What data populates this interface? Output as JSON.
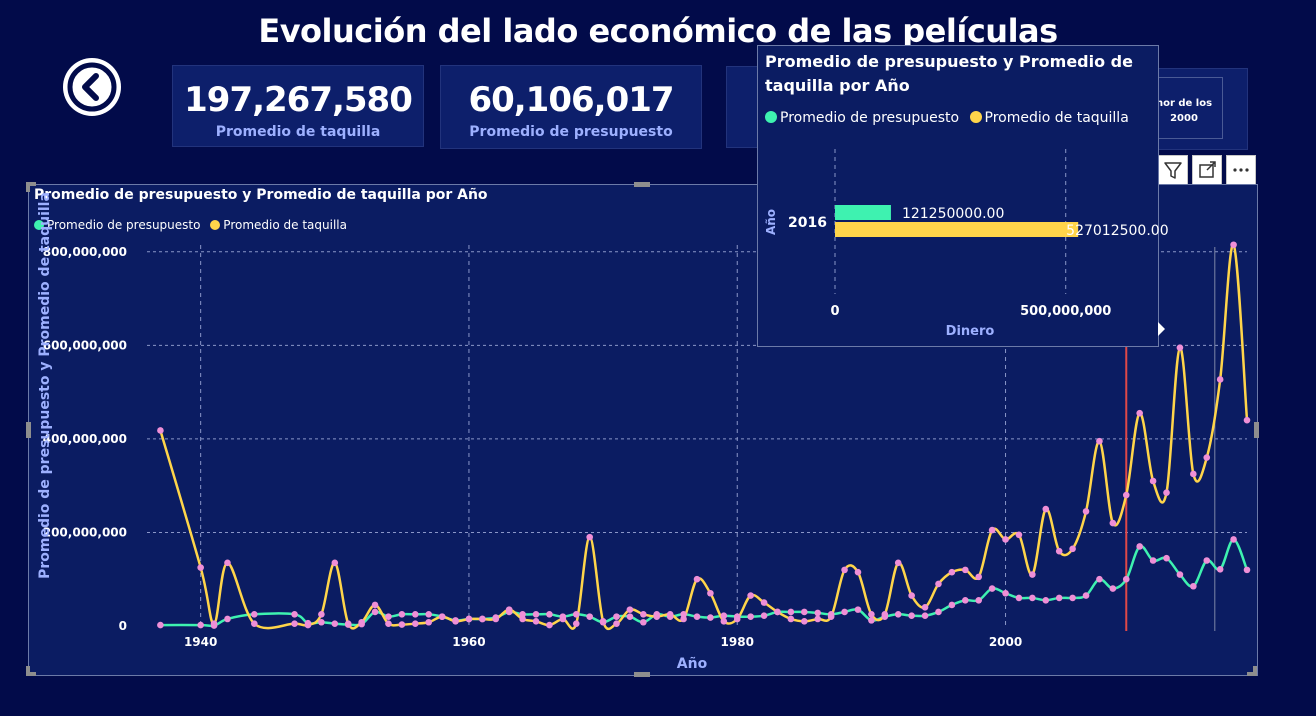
{
  "page": {
    "title": "Evolución del lado económico de las películas"
  },
  "icons": {
    "back": "chevron-left-circle-icon",
    "filter": "filter-icon",
    "focus": "focus-mode-icon",
    "more": "more-options-icon",
    "arrow": "chevron-right-icon"
  },
  "kpis": [
    {
      "value": "197,267,580",
      "label": "Promedio de taquilla"
    },
    {
      "value": "60,106,017",
      "label": "Promedio de presupuesto"
    },
    {
      "value": "",
      "label": ""
    },
    {
      "value": "",
      "label": "nor de los 2000"
    }
  ],
  "colors": {
    "background": "#020b4a",
    "panel": "#0b1c62",
    "presupuesto": "#3ef2b0",
    "taquilla": "#ffd54a",
    "points": "#ef8fd7",
    "reference_line": "#e04848"
  },
  "chart_data": [
    {
      "type": "line",
      "title": "Promedio de presupuesto y Promedio de taquilla por Año",
      "xlabel": "Año",
      "ylabel": "Promedio de presupuesto y Promedio de taquilla",
      "xlim": [
        1936,
        2018
      ],
      "ylim": [
        0,
        900000000
      ],
      "x_ticks": [
        "1940",
        "1960",
        "1980",
        "2000"
      ],
      "x_tick_values": [
        1940,
        1960,
        1980,
        2000
      ],
      "y_ticks": [
        "0",
        "200,000,000",
        "400,000,000",
        "600,000,000",
        "800,000,000"
      ],
      "y_tick_values": [
        0,
        200000000,
        400000000,
        600000000,
        800000000
      ],
      "grid": true,
      "legend": "top-left",
      "highlight_x": 2009,
      "series": [
        {
          "name": "Promedio de presupuesto",
          "color": "#3ef2b0",
          "x": [
            1937,
            1940,
            1941,
            1942,
            1944,
            1947,
            1948,
            1949,
            1950,
            1951,
            1952,
            1953,
            1954,
            1955,
            1956,
            1957,
            1958,
            1959,
            1960,
            1961,
            1962,
            1963,
            1964,
            1965,
            1966,
            1967,
            1968,
            1969,
            1970,
            1971,
            1972,
            1973,
            1974,
            1975,
            1976,
            1977,
            1978,
            1979,
            1980,
            1981,
            1982,
            1983,
            1984,
            1985,
            1986,
            1987,
            1988,
            1989,
            1990,
            1991,
            1992,
            1993,
            1994,
            1995,
            1996,
            1997,
            1998,
            1999,
            2000,
            2001,
            2002,
            2003,
            2004,
            2005,
            2006,
            2007,
            2008,
            2009,
            2010,
            2011,
            2012,
            2013,
            2014,
            2015,
            2016,
            2017,
            2018
          ],
          "values": [
            2000000,
            2000000,
            1000000,
            15000000,
            25000000,
            25000000,
            6000000,
            8000000,
            5000000,
            3000000,
            4000000,
            30000000,
            20000000,
            25000000,
            25000000,
            25000000,
            20000000,
            12000000,
            15000000,
            15000000,
            18000000,
            30000000,
            25000000,
            25000000,
            25000000,
            20000000,
            25000000,
            20000000,
            8000000,
            20000000,
            20000000,
            8000000,
            25000000,
            20000000,
            25000000,
            20000000,
            18000000,
            22000000,
            20000000,
            20000000,
            22000000,
            30000000,
            30000000,
            30000000,
            28000000,
            25000000,
            30000000,
            35000000,
            12000000,
            20000000,
            25000000,
            22000000,
            22000000,
            30000000,
            45000000,
            55000000,
            55000000,
            80000000,
            70000000,
            60000000,
            60000000,
            55000000,
            60000000,
            60000000,
            65000000,
            100000000,
            80000000,
            100000000,
            170000000,
            140000000,
            145000000,
            110000000,
            85000000,
            140000000,
            121250000,
            185000000,
            120000000
          ]
        },
        {
          "name": "Promedio de taquilla",
          "color": "#ffd54a",
          "x": [
            1937,
            1940,
            1941,
            1942,
            1944,
            1947,
            1948,
            1949,
            1950,
            1951,
            1952,
            1953,
            1954,
            1955,
            1956,
            1957,
            1958,
            1959,
            1960,
            1961,
            1962,
            1963,
            1964,
            1965,
            1966,
            1967,
            1968,
            1969,
            1970,
            1971,
            1972,
            1973,
            1974,
            1975,
            1976,
            1977,
            1978,
            1979,
            1980,
            1981,
            1982,
            1983,
            1984,
            1985,
            1986,
            1987,
            1988,
            1989,
            1990,
            1991,
            1992,
            1993,
            1994,
            1995,
            1996,
            1997,
            1998,
            1999,
            2000,
            2001,
            2002,
            2003,
            2004,
            2005,
            2006,
            2007,
            2008,
            2009,
            2010,
            2011,
            2012,
            2013,
            2014,
            2015,
            2016,
            2017,
            2018
          ],
          "values": [
            418000000,
            125000000,
            5000000,
            135000000,
            5000000,
            5000000,
            2000000,
            25000000,
            135000000,
            5000000,
            8000000,
            45000000,
            5000000,
            3000000,
            5000000,
            8000000,
            20000000,
            10000000,
            15000000,
            15000000,
            15000000,
            35000000,
            15000000,
            10000000,
            2000000,
            15000000,
            5000000,
            190000000,
            10000000,
            5000000,
            35000000,
            25000000,
            20000000,
            25000000,
            15000000,
            100000000,
            70000000,
            10000000,
            15000000,
            65000000,
            50000000,
            30000000,
            15000000,
            10000000,
            15000000,
            20000000,
            120000000,
            115000000,
            25000000,
            25000000,
            135000000,
            65000000,
            40000000,
            90000000,
            115000000,
            120000000,
            105000000,
            205000000,
            185000000,
            195000000,
            110000000,
            250000000,
            160000000,
            165000000,
            245000000,
            395000000,
            220000000,
            280000000,
            455000000,
            310000000,
            285000000,
            595000000,
            325000000,
            360000000,
            527012500,
            815000000,
            440000000
          ]
        }
      ]
    },
    {
      "type": "bar",
      "orientation": "horizontal",
      "title": "Promedio de presupuesto y Promedio de taquilla por Año",
      "xlabel": "Dinero",
      "ylabel": "Año",
      "categories": [
        "2016"
      ],
      "xlim": [
        0,
        700000000
      ],
      "x_ticks": [
        "0",
        "500,000,000"
      ],
      "x_tick_values": [
        0,
        500000000
      ],
      "legend": "top-left",
      "series": [
        {
          "name": "Promedio de presupuesto",
          "color": "#3ef2b0",
          "values": [
            121250000
          ],
          "labels": [
            "121250000.00"
          ]
        },
        {
          "name": "Promedio de taquilla",
          "color": "#ffd54a",
          "values": [
            527012500
          ],
          "labels": [
            "527012500.00"
          ]
        }
      ]
    }
  ]
}
